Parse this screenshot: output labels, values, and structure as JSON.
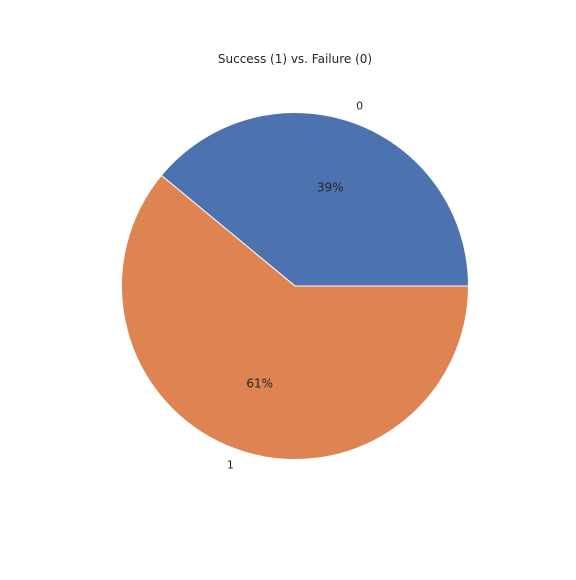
{
  "chart_data": {
    "type": "pie",
    "title": "Success (1) vs. Failure (0)",
    "categories": [
      "0",
      "1"
    ],
    "values": [
      39,
      61
    ],
    "percent_labels": [
      "39%",
      "61%"
    ],
    "colors": [
      "#4c72b0",
      "#dd8452"
    ],
    "legend": "none",
    "start_angle_degrees": 0,
    "direction": "counterclockwise"
  }
}
